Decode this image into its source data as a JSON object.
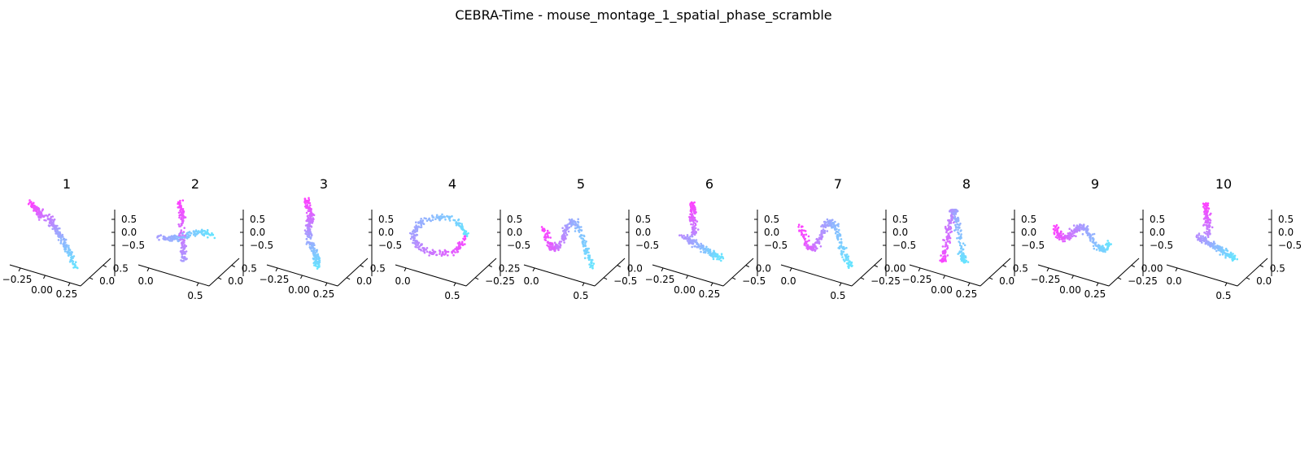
{
  "figure": {
    "title": "CEBRA-Time - mouse_montage_1_spatial_phase_scramble"
  },
  "chart_data": [
    {
      "type": "scatter",
      "title": "1",
      "colormap": [
        "#ff00ff",
        "#8a7bff",
        "#33ddff"
      ],
      "shape": "arc",
      "x_ticks": [
        "−0.25",
        "0.00",
        "0.25"
      ],
      "y_ticks": [
        "0.5",
        "0.0"
      ],
      "z_ticks": [
        "0.5",
        "0.0",
        "−0.5"
      ]
    },
    {
      "type": "scatter",
      "title": "2",
      "colormap": [
        "#ff00ff",
        "#8a7bff",
        "#33ddff"
      ],
      "shape": "cross",
      "x_ticks": [
        "0.0",
        "0.5"
      ],
      "y_ticks": [
        "0.5",
        "0.0"
      ],
      "z_ticks": [
        "0.5",
        "0.0",
        "−0.5"
      ]
    },
    {
      "type": "scatter",
      "title": "3",
      "colormap": [
        "#ff00ff",
        "#8a7bff",
        "#33ddff"
      ],
      "shape": "column",
      "x_ticks": [
        "−0.25",
        "0.00",
        "0.25"
      ],
      "y_ticks": [
        "0.5",
        "0.0"
      ],
      "z_ticks": [
        "0.5",
        "0.0",
        "−0.5"
      ]
    },
    {
      "type": "scatter",
      "title": "4",
      "colormap": [
        "#ff00ff",
        "#8a7bff",
        "#33ddff"
      ],
      "shape": "ring",
      "x_ticks": [
        "0.0",
        "0.5"
      ],
      "y_ticks": [
        "0.25",
        "−0.25"
      ],
      "z_ticks": [
        "0.5",
        "0.0",
        "−0.5"
      ]
    },
    {
      "type": "scatter",
      "title": "5",
      "colormap": [
        "#ff00ff",
        "#8a7bff",
        "#33ddff"
      ],
      "shape": "loop",
      "x_ticks": [
        "0.0",
        "0.5"
      ],
      "y_ticks": [
        "0.0",
        "−0.5"
      ],
      "z_ticks": [
        "0.5",
        "0.0",
        "−0.5"
      ]
    },
    {
      "type": "scatter",
      "title": "6",
      "colormap": [
        "#ff00ff",
        "#8a7bff",
        "#33ddff"
      ],
      "shape": "hook",
      "x_ticks": [
        "−0.25",
        "0.00",
        "0.25"
      ],
      "y_ticks": [
        "0.0",
        "−0.5"
      ],
      "z_ticks": [
        "0.5",
        "0.0",
        "−0.5"
      ]
    },
    {
      "type": "scatter",
      "title": "7",
      "colormap": [
        "#ff00ff",
        "#8a7bff",
        "#33ddff"
      ],
      "shape": "loop",
      "x_ticks": [
        "0.0",
        "0.5"
      ],
      "y_ticks": [
        "0.00",
        "−0.25"
      ],
      "z_ticks": [
        "0.5",
        "0.0",
        "−0.5"
      ]
    },
    {
      "type": "scatter",
      "title": "8",
      "colormap": [
        "#ff00ff",
        "#8a7bff",
        "#33ddff"
      ],
      "shape": "u",
      "x_ticks": [
        "−0.25",
        "0.00",
        "0.25"
      ],
      "y_ticks": [
        "0.5",
        "0.0"
      ],
      "z_ticks": [
        "0.5",
        "0.0",
        "−0.5"
      ]
    },
    {
      "type": "scatter",
      "title": "9",
      "colormap": [
        "#ff00ff",
        "#8a7bff",
        "#33ddff"
      ],
      "shape": "band",
      "x_ticks": [
        "−0.25",
        "0.00",
        "0.25"
      ],
      "y_ticks": [
        "0.00",
        "−0.25"
      ],
      "z_ticks": [
        "0.5",
        "0.0",
        "−0.5"
      ]
    },
    {
      "type": "scatter",
      "title": "10",
      "colormap": [
        "#ff00ff",
        "#8a7bff",
        "#33ddff"
      ],
      "shape": "hook",
      "x_ticks": [
        "0.0",
        "0.5"
      ],
      "y_ticks": [
        "0.5",
        "0.0"
      ],
      "z_ticks": [
        "0.5",
        "0.0",
        "−0.5"
      ]
    }
  ]
}
